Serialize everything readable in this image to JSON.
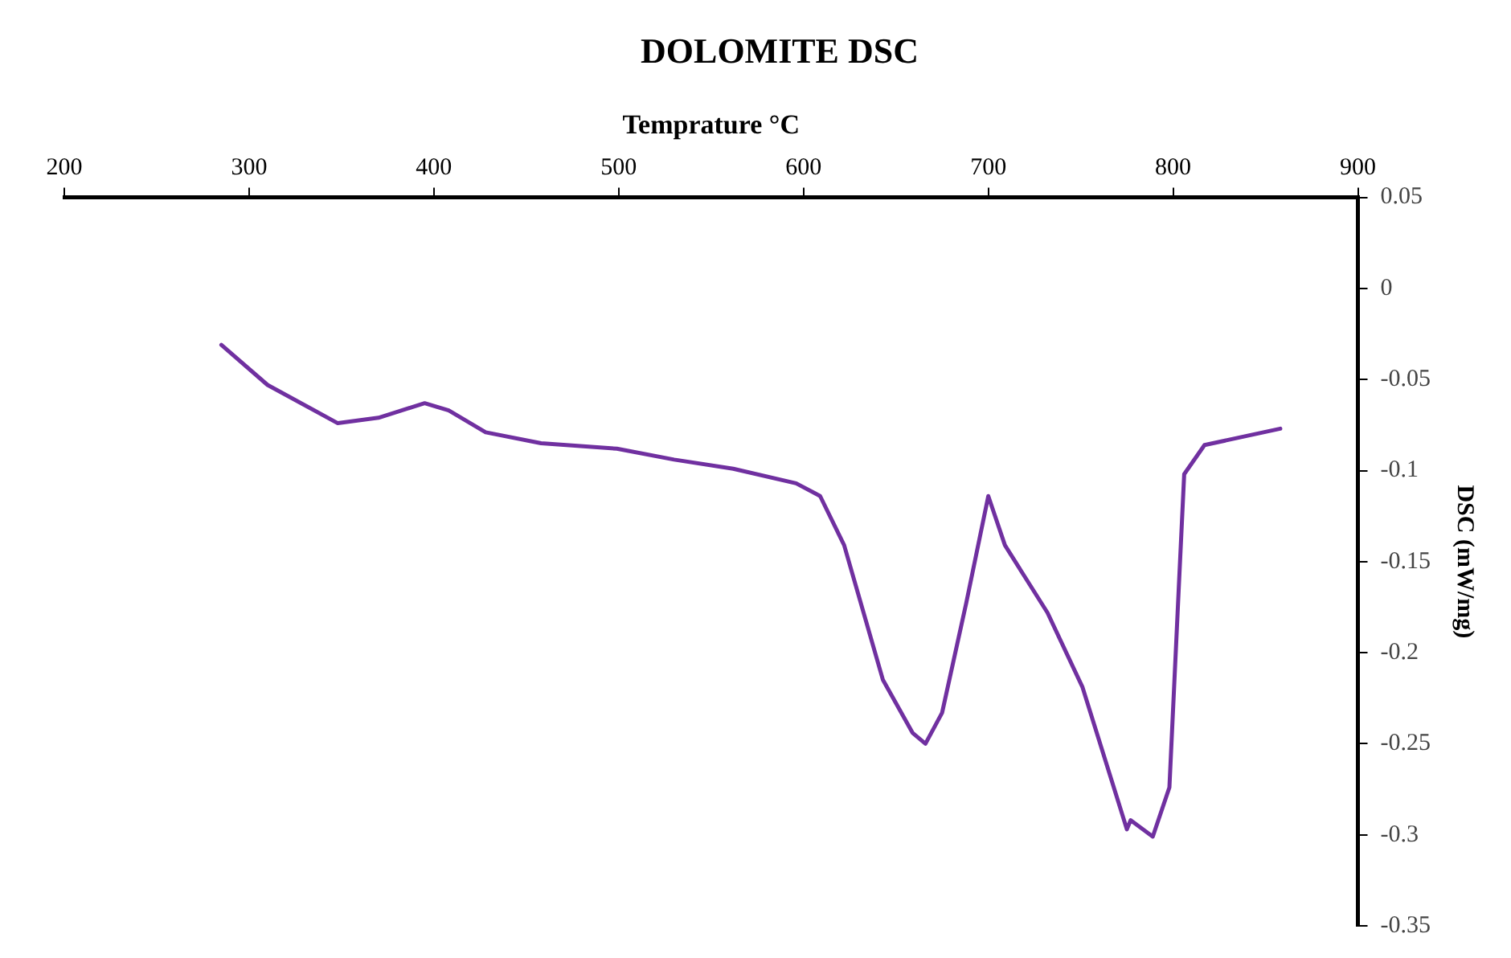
{
  "chart_data": {
    "type": "line",
    "title": "DOLOMITE DSC",
    "xlabel": "Temprature °C",
    "ylabel": "DSC (mW/mg)",
    "x": [
      285,
      310,
      348,
      370,
      395,
      408,
      428,
      458,
      499,
      530,
      562,
      596,
      609,
      622,
      643,
      659,
      666,
      675,
      688,
      700,
      709,
      732,
      751,
      775,
      777,
      789,
      798,
      803,
      806,
      817,
      858
    ],
    "series": [
      {
        "color": "#7030a0",
        "values": [
          -0.031,
          -0.053,
          -0.074,
          -0.071,
          -0.063,
          -0.067,
          -0.079,
          -0.085,
          -0.088,
          -0.094,
          -0.099,
          -0.107,
          -0.114,
          -0.141,
          -0.215,
          -0.244,
          -0.25,
          -0.233,
          -0.173,
          -0.114,
          -0.141,
          -0.178,
          -0.219,
          -0.297,
          -0.292,
          -0.301,
          -0.274,
          -0.166,
          -0.102,
          -0.086,
          -0.077
        ]
      }
    ],
    "xlim": [
      200,
      900
    ],
    "xticks": [
      200,
      300,
      400,
      500,
      600,
      700,
      800,
      900
    ],
    "ylim": [
      -0.35,
      0.05
    ],
    "yticks": [
      -0.35,
      -0.3,
      -0.25,
      -0.2,
      -0.15,
      -0.1,
      -0.05,
      0,
      0.05
    ],
    "grid": false,
    "legend": false,
    "marker": "none",
    "line_style": "solid"
  }
}
